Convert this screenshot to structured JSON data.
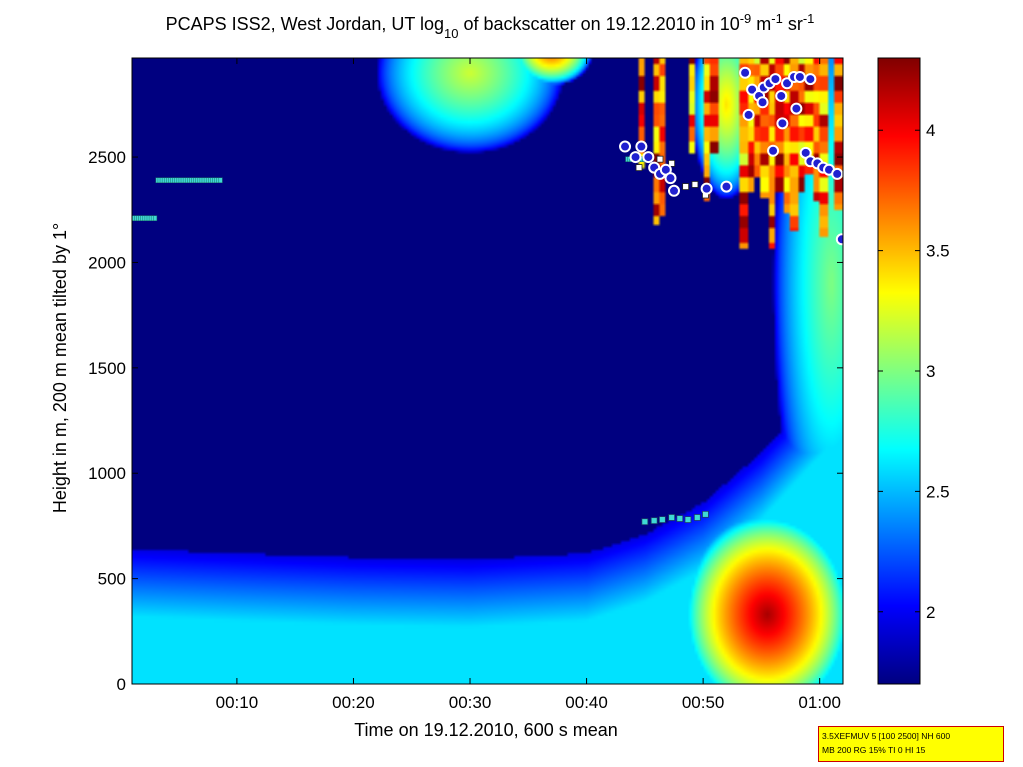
{
  "chart_data": {
    "type": "heatmap",
    "title_parts": [
      "PCAPS ISS2, West Jordan, UT log",
      "10",
      " of backscatter on 19.12.2010 in 10",
      "-9",
      " m",
      "-1",
      " sr",
      "-1"
    ],
    "xlabel": "Time on 19.12.2010, 600 s mean",
    "ylabel": "Height in m, 200 m mean tilted by 1°",
    "x_unit": "minutes after 00:00 UT",
    "xlim": [
      1,
      62
    ],
    "ylim": [
      0,
      2970
    ],
    "x_ticks": [
      {
        "value": 10,
        "label": "00:10"
      },
      {
        "value": 20,
        "label": "00:20"
      },
      {
        "value": 30,
        "label": "00:30"
      },
      {
        "value": 40,
        "label": "00:40"
      },
      {
        "value": 50,
        "label": "00:50"
      },
      {
        "value": 60,
        "label": "01:00"
      }
    ],
    "y_ticks": [
      0,
      500,
      1000,
      1500,
      2000,
      2500
    ],
    "colorbar": {
      "range": [
        1.7,
        4.3
      ],
      "ticks": [
        2,
        2.5,
        3,
        3.5,
        4
      ],
      "colormap": "jet"
    },
    "background_value": 1.7,
    "surface_layer": {
      "x": [
        1,
        10,
        20,
        30,
        40,
        45,
        50,
        55,
        60,
        62
      ],
      "top_height": [
        640,
        620,
        600,
        590,
        620,
        710,
        860,
        1100,
        1400,
        1550
      ],
      "value": 2.6
    },
    "aerosol_blobs": [
      {
        "x_center": 55.5,
        "height_center": 330,
        "x_halfwidth": 7.5,
        "height_halfwidth": 500,
        "value": 4.2
      },
      {
        "x_center": 61,
        "height_center": 1900,
        "x_halfwidth": 5,
        "height_halfwidth": 1400,
        "value": 3.0
      },
      {
        "x_center": 30,
        "height_center": 2900,
        "x_halfwidth": 8,
        "height_halfwidth": 380,
        "value": 3.2
      },
      {
        "x_center": 37,
        "height_center": 3000,
        "x_halfwidth": 3.5,
        "height_halfwidth": 160,
        "value": 3.8
      },
      {
        "x_center": 52,
        "height_center": 2750,
        "x_halfwidth": 3,
        "height_halfwidth": 450,
        "value": 3.4
      }
    ],
    "cloud_band": {
      "x_range": [
        43,
        62
      ],
      "height_range": [
        2050,
        2970
      ],
      "value_range": [
        3.2,
        4.3
      ]
    },
    "cyan_markers": [
      {
        "x": [
          1,
          3
        ],
        "height": 2210
      },
      {
        "x": [
          3.2,
          8.6
        ],
        "height": 2390
      },
      {
        "x": [
          43.5,
          45.2
        ],
        "height": 2490
      },
      {
        "x": [
          45,
          45.8,
          46.5,
          47.3,
          48,
          48.7,
          49.5,
          50.2
        ],
        "height": [
          770,
          775,
          780,
          790,
          785,
          780,
          790,
          805
        ]
      }
    ],
    "white_squares": [
      {
        "x": 44.5,
        "height": 2450
      },
      {
        "x": 46.3,
        "height": 2490
      },
      {
        "x": 47.3,
        "height": 2470
      },
      {
        "x": 48.5,
        "height": 2360
      },
      {
        "x": 49.3,
        "height": 2370
      },
      {
        "x": 50.2,
        "height": 2320
      }
    ],
    "white_circles": [
      {
        "x": 43.3,
        "height": 2550
      },
      {
        "x": 44.2,
        "height": 2500
      },
      {
        "x": 44.7,
        "height": 2550
      },
      {
        "x": 45.3,
        "height": 2500
      },
      {
        "x": 45.8,
        "height": 2450
      },
      {
        "x": 46.3,
        "height": 2420
      },
      {
        "x": 46.8,
        "height": 2440
      },
      {
        "x": 47.2,
        "height": 2400
      },
      {
        "x": 47.5,
        "height": 2340
      },
      {
        "x": 50.3,
        "height": 2350
      },
      {
        "x": 52.0,
        "height": 2360
      },
      {
        "x": 53.6,
        "height": 2900
      },
      {
        "x": 54.2,
        "height": 2820
      },
      {
        "x": 54.8,
        "height": 2790
      },
      {
        "x": 55.2,
        "height": 2830
      },
      {
        "x": 55.7,
        "height": 2850
      },
      {
        "x": 56.2,
        "height": 2870
      },
      {
        "x": 56.7,
        "height": 2790
      },
      {
        "x": 57.2,
        "height": 2850
      },
      {
        "x": 57.8,
        "height": 2880
      },
      {
        "x": 58.3,
        "height": 2880
      },
      {
        "x": 59.2,
        "height": 2870
      },
      {
        "x": 53.9,
        "height": 2700
      },
      {
        "x": 55.1,
        "height": 2760
      },
      {
        "x": 56.8,
        "height": 2660
      },
      {
        "x": 58.0,
        "height": 2730
      },
      {
        "x": 56.0,
        "height": 2530
      },
      {
        "x": 58.8,
        "height": 2520
      },
      {
        "x": 59.2,
        "height": 2480
      },
      {
        "x": 59.8,
        "height": 2470
      },
      {
        "x": 60.3,
        "height": 2450
      },
      {
        "x": 60.8,
        "height": 2440
      },
      {
        "x": 61.5,
        "height": 2420
      },
      {
        "x": 61.9,
        "height": 2110
      }
    ],
    "grid": false,
    "legend": "none"
  },
  "info_box": {
    "line1": "3.5XEFMUV 5 [100 2500] NH 600",
    "line2": "MB 200 RG 15% TI 0 HI 15"
  }
}
